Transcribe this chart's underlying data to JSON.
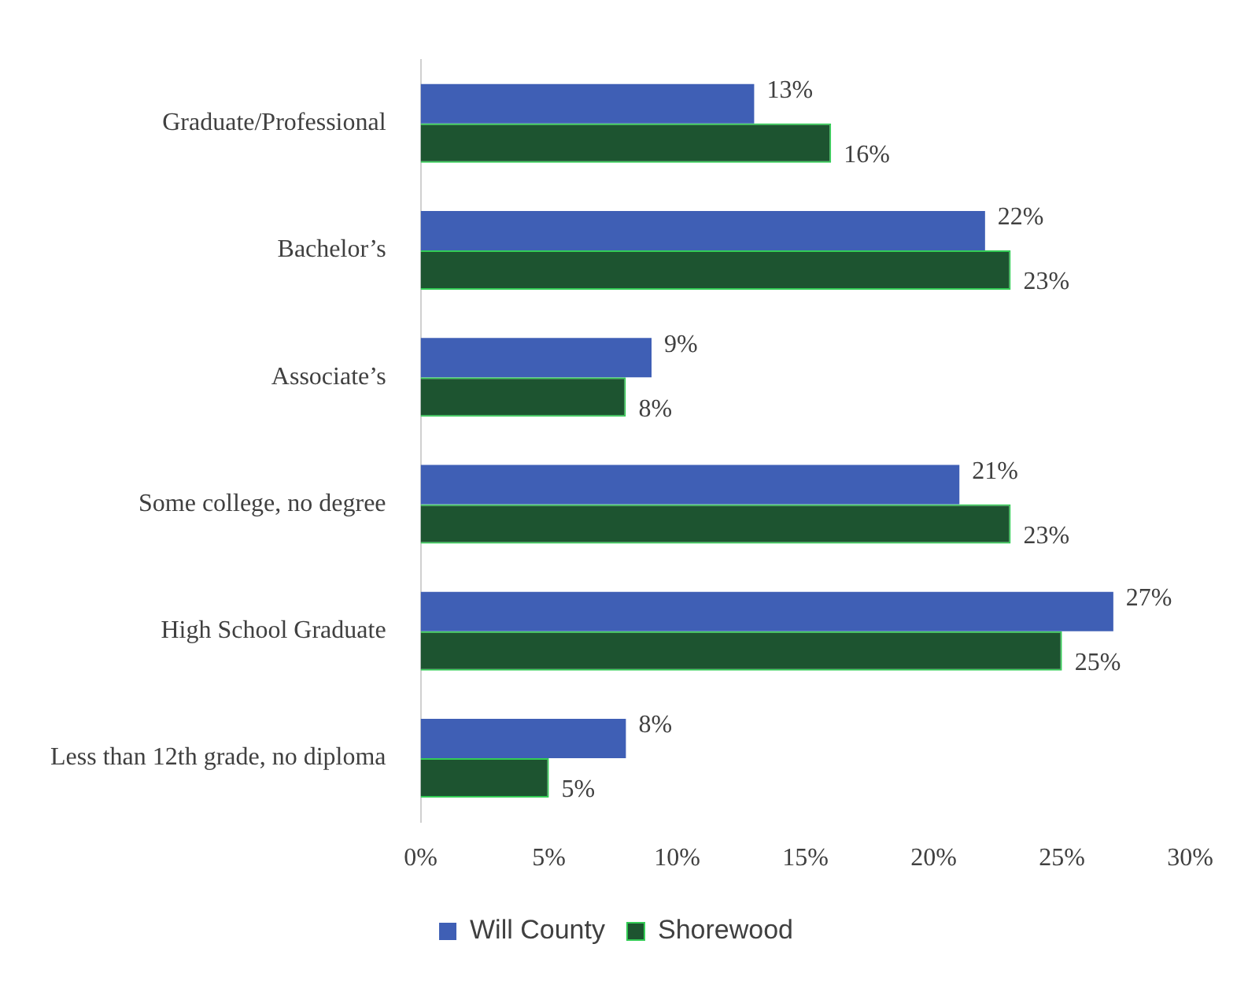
{
  "chart_data": {
    "type": "bar",
    "orientation": "horizontal",
    "categories": [
      "Graduate/Professional",
      "Bachelor’s",
      "Associate’s",
      "Some college, no degree",
      "High School Graduate",
      "Less than 12th grade, no diploma"
    ],
    "series": [
      {
        "name": "Will County",
        "color": "#3f5fb5",
        "values": [
          13,
          22,
          9,
          21,
          27,
          8
        ],
        "value_labels": [
          "13%",
          "22%",
          "9%",
          "21%",
          "27%",
          "8%"
        ]
      },
      {
        "name": "Shorewood",
        "color": "#1d5430",
        "values": [
          16,
          23,
          8,
          23,
          25,
          5
        ],
        "value_labels": [
          "16%",
          "23%",
          "8%",
          "23%",
          "25%",
          "5%"
        ]
      }
    ],
    "xlim": [
      0,
      30
    ],
    "xticks": [
      {
        "value": 0,
        "label": "0%"
      },
      {
        "value": 5,
        "label": "5%"
      },
      {
        "value": 10,
        "label": "10%"
      },
      {
        "value": 15,
        "label": "15%"
      },
      {
        "value": 20,
        "label": "20%"
      },
      {
        "value": 25,
        "label": "25%"
      },
      {
        "value": 30,
        "label": "30%"
      }
    ],
    "grid": false,
    "legend": "bottom"
  }
}
